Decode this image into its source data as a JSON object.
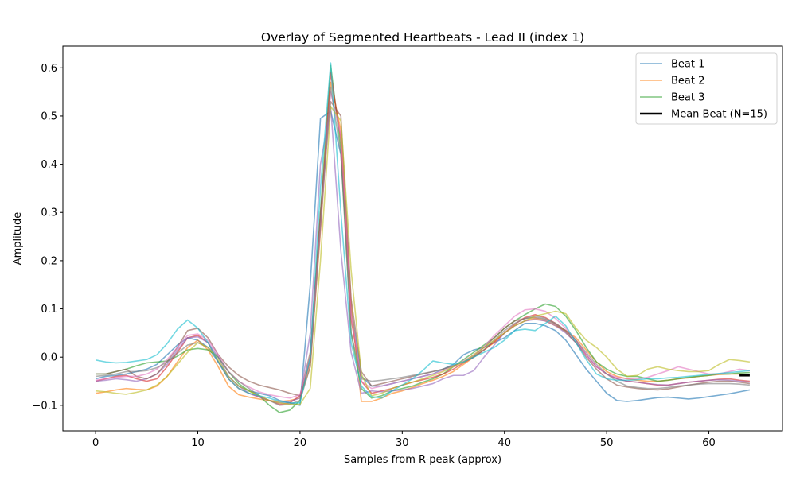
{
  "chart_data": {
    "type": "line",
    "title": "Overlay of Segmented Heartbeats - Lead II (index 1)",
    "xlabel": "Samples from R-peak (approx)",
    "ylabel": "Amplitude",
    "xlim": [
      -3.2,
      67.2
    ],
    "ylim": [
      -0.153,
      0.645
    ],
    "xticks": [
      0,
      10,
      20,
      30,
      40,
      50,
      60
    ],
    "yticks": [
      -0.1,
      0.0,
      0.1,
      0.2,
      0.3,
      0.4,
      0.5,
      0.6
    ],
    "ytick_labels": [
      "−0.1",
      "0.0",
      "0.1",
      "0.2",
      "0.3",
      "0.4",
      "0.5",
      "0.6"
    ],
    "grid": false,
    "legend_position": "upper right",
    "legend": [
      "Beat 1",
      "Beat 2",
      "Beat 3",
      "Mean Beat (N=15)"
    ],
    "series": [
      {
        "name": "Beat 1",
        "color": "#1f77b4",
        "values": [
          -0.045,
          -0.04,
          -0.038,
          -0.035,
          -0.03,
          -0.025,
          -0.015,
          0.005,
          0.025,
          0.04,
          0.035,
          0.02,
          -0.01,
          -0.04,
          -0.06,
          -0.07,
          -0.075,
          -0.08,
          -0.09,
          -0.095,
          -0.1,
          0.15,
          0.495,
          0.51,
          0.42,
          0.1,
          -0.04,
          -0.06,
          -0.06,
          -0.055,
          -0.05,
          -0.045,
          -0.04,
          -0.035,
          -0.025,
          -0.015,
          0.005,
          0.015,
          0.02,
          0.03,
          0.04,
          0.055,
          0.07,
          0.07,
          0.065,
          0.055,
          0.035,
          0.005,
          -0.025,
          -0.05,
          -0.075,
          -0.09,
          -0.092,
          -0.09,
          -0.087,
          -0.084,
          -0.083,
          -0.085,
          -0.087,
          -0.085,
          -0.082,
          -0.079,
          -0.076,
          -0.072,
          -0.068
        ]
      },
      {
        "name": "Beat 2",
        "color": "#ff7f0e",
        "values": [
          -0.075,
          -0.072,
          -0.068,
          -0.065,
          -0.067,
          -0.068,
          -0.06,
          -0.04,
          -0.01,
          0.02,
          0.035,
          0.015,
          -0.02,
          -0.06,
          -0.078,
          -0.083,
          -0.087,
          -0.09,
          -0.092,
          -0.09,
          -0.085,
          -0.02,
          0.26,
          0.57,
          0.47,
          0.11,
          -0.092,
          -0.092,
          -0.085,
          -0.075,
          -0.07,
          -0.063,
          -0.055,
          -0.048,
          -0.04,
          -0.03,
          -0.015,
          0.0,
          0.015,
          0.03,
          0.05,
          0.065,
          0.075,
          0.08,
          0.075,
          0.065,
          0.055,
          0.04,
          0.015,
          -0.01,
          -0.03,
          -0.04,
          -0.045,
          -0.048,
          -0.05,
          -0.05,
          -0.048,
          -0.045,
          -0.043,
          -0.04,
          -0.038,
          -0.036,
          -0.035,
          -0.035,
          -0.036
        ]
      },
      {
        "name": "Beat 3",
        "color": "#2ca02c",
        "values": [
          -0.035,
          -0.035,
          -0.03,
          -0.025,
          -0.018,
          -0.012,
          -0.01,
          -0.008,
          0.002,
          0.015,
          0.018,
          0.015,
          0.0,
          -0.03,
          -0.055,
          -0.07,
          -0.08,
          -0.1,
          -0.115,
          -0.11,
          -0.09,
          0.0,
          0.3,
          0.605,
          0.43,
          0.05,
          -0.065,
          -0.085,
          -0.08,
          -0.07,
          -0.065,
          -0.06,
          -0.052,
          -0.045,
          -0.035,
          -0.02,
          -0.005,
          0.01,
          0.025,
          0.04,
          0.06,
          0.075,
          0.088,
          0.1,
          0.11,
          0.105,
          0.085,
          0.055,
          0.02,
          -0.01,
          -0.025,
          -0.035,
          -0.04,
          -0.04,
          -0.045,
          -0.05,
          -0.048,
          -0.045,
          -0.042,
          -0.04,
          -0.038,
          -0.035,
          -0.035,
          -0.033,
          -0.032
        ]
      },
      {
        "name": "",
        "color": "#d62728",
        "values": [
          -0.05,
          -0.045,
          -0.04,
          -0.038,
          -0.045,
          -0.05,
          -0.045,
          -0.02,
          0.01,
          0.04,
          0.045,
          0.03,
          -0.01,
          -0.045,
          -0.065,
          -0.075,
          -0.082,
          -0.09,
          -0.098,
          -0.095,
          -0.08,
          -0.01,
          0.28,
          0.59,
          0.45,
          0.08,
          -0.05,
          -0.075,
          -0.07,
          -0.065,
          -0.058,
          -0.052,
          -0.047,
          -0.042,
          -0.035,
          -0.025,
          -0.012,
          0.0,
          0.015,
          0.032,
          0.05,
          0.068,
          0.082,
          0.088,
          0.082,
          0.07,
          0.055,
          0.035,
          0.005,
          -0.02,
          -0.035,
          -0.045,
          -0.05,
          -0.052,
          -0.055,
          -0.058,
          -0.058,
          -0.055,
          -0.052,
          -0.05,
          -0.048,
          -0.046,
          -0.045,
          -0.048,
          -0.05
        ]
      },
      {
        "name": "",
        "color": "#9467bd",
        "values": [
          -0.05,
          -0.048,
          -0.045,
          -0.047,
          -0.05,
          -0.045,
          -0.035,
          -0.015,
          0.015,
          0.04,
          0.042,
          0.03,
          0.0,
          -0.04,
          -0.06,
          -0.075,
          -0.083,
          -0.09,
          -0.095,
          -0.092,
          -0.085,
          0.05,
          0.4,
          0.52,
          0.22,
          0.01,
          -0.075,
          -0.07,
          -0.072,
          -0.07,
          -0.068,
          -0.065,
          -0.06,
          -0.055,
          -0.045,
          -0.038,
          -0.038,
          -0.028,
          0.0,
          0.025,
          0.05,
          0.065,
          0.075,
          0.078,
          0.075,
          0.065,
          0.05,
          0.03,
          0.005,
          -0.02,
          -0.035,
          -0.045,
          -0.05,
          -0.052,
          -0.055,
          -0.057,
          -0.058,
          -0.055,
          -0.052,
          -0.05,
          -0.048,
          -0.047,
          -0.048,
          -0.05,
          -0.052
        ]
      },
      {
        "name": "",
        "color": "#8c564b",
        "values": [
          -0.035,
          -0.035,
          -0.03,
          -0.025,
          -0.04,
          -0.045,
          -0.035,
          -0.01,
          0.02,
          0.055,
          0.06,
          0.04,
          0.005,
          -0.02,
          -0.038,
          -0.05,
          -0.058,
          -0.063,
          -0.068,
          -0.075,
          -0.08,
          0.01,
          0.3,
          0.53,
          0.5,
          0.12,
          -0.03,
          -0.06,
          -0.055,
          -0.05,
          -0.045,
          -0.04,
          -0.035,
          -0.03,
          -0.025,
          -0.018,
          -0.01,
          0.002,
          0.02,
          0.04,
          0.06,
          0.075,
          0.08,
          0.082,
          0.078,
          0.068,
          0.052,
          0.03,
          0.0,
          -0.025,
          -0.045,
          -0.058,
          -0.062,
          -0.065,
          -0.067,
          -0.068,
          -0.066,
          -0.062,
          -0.058,
          -0.055,
          -0.052,
          -0.05,
          -0.05,
          -0.052,
          -0.055
        ]
      },
      {
        "name": "",
        "color": "#e377c2",
        "values": [
          -0.048,
          -0.045,
          -0.042,
          -0.04,
          -0.04,
          -0.035,
          -0.025,
          -0.005,
          0.02,
          0.045,
          0.048,
          0.035,
          0.005,
          -0.03,
          -0.05,
          -0.062,
          -0.072,
          -0.078,
          -0.082,
          -0.085,
          -0.078,
          0.0,
          0.27,
          0.55,
          0.46,
          0.09,
          -0.05,
          -0.065,
          -0.06,
          -0.055,
          -0.05,
          -0.045,
          -0.04,
          -0.035,
          -0.028,
          -0.02,
          -0.008,
          0.005,
          0.022,
          0.045,
          0.065,
          0.085,
          0.098,
          0.1,
          0.095,
          0.08,
          0.06,
          0.035,
          0.005,
          -0.02,
          -0.035,
          -0.042,
          -0.045,
          -0.045,
          -0.042,
          -0.035,
          -0.028,
          -0.02,
          -0.025,
          -0.03,
          -0.035,
          -0.035,
          -0.03,
          -0.025,
          -0.028
        ]
      },
      {
        "name": "",
        "color": "#7f7f7f",
        "values": [
          -0.04,
          -0.038,
          -0.035,
          -0.03,
          -0.03,
          -0.028,
          -0.022,
          -0.01,
          0.008,
          0.025,
          0.03,
          0.02,
          0.0,
          -0.03,
          -0.05,
          -0.065,
          -0.08,
          -0.09,
          -0.1,
          -0.098,
          -0.09,
          -0.02,
          0.27,
          0.56,
          0.42,
          0.05,
          -0.045,
          -0.05,
          -0.048,
          -0.045,
          -0.042,
          -0.038,
          -0.034,
          -0.03,
          -0.025,
          -0.018,
          -0.01,
          0.0,
          0.015,
          0.035,
          0.055,
          0.07,
          0.08,
          0.085,
          0.08,
          0.07,
          0.055,
          0.035,
          0.01,
          -0.015,
          -0.035,
          -0.05,
          -0.06,
          -0.063,
          -0.065,
          -0.065,
          -0.063,
          -0.06,
          -0.058,
          -0.056,
          -0.055,
          -0.055,
          -0.055,
          -0.056,
          -0.058
        ]
      },
      {
        "name": "",
        "color": "#bcbd22",
        "values": [
          -0.07,
          -0.072,
          -0.075,
          -0.077,
          -0.073,
          -0.068,
          -0.058,
          -0.04,
          -0.015,
          0.01,
          0.03,
          0.02,
          -0.005,
          -0.04,
          -0.06,
          -0.07,
          -0.08,
          -0.09,
          -0.095,
          -0.098,
          -0.098,
          -0.065,
          0.2,
          0.52,
          0.49,
          0.18,
          -0.035,
          -0.08,
          -0.075,
          -0.065,
          -0.058,
          -0.052,
          -0.045,
          -0.038,
          -0.03,
          -0.02,
          -0.01,
          0.005,
          0.02,
          0.035,
          0.05,
          0.065,
          0.075,
          0.085,
          0.09,
          0.095,
          0.09,
          0.06,
          0.035,
          0.02,
          0.0,
          -0.025,
          -0.04,
          -0.038,
          -0.025,
          -0.02,
          -0.025,
          -0.028,
          -0.03,
          -0.03,
          -0.028,
          -0.015,
          -0.005,
          -0.007,
          -0.01
        ]
      },
      {
        "name": "",
        "color": "#17becf",
        "values": [
          -0.006,
          -0.01,
          -0.012,
          -0.011,
          -0.008,
          -0.005,
          0.005,
          0.028,
          0.058,
          0.077,
          0.06,
          0.03,
          -0.01,
          -0.045,
          -0.065,
          -0.075,
          -0.08,
          -0.085,
          -0.092,
          -0.095,
          -0.095,
          0.0,
          0.35,
          0.61,
          0.3,
          0.03,
          -0.06,
          -0.082,
          -0.085,
          -0.07,
          -0.058,
          -0.045,
          -0.028,
          -0.008,
          -0.012,
          -0.015,
          -0.01,
          0.0,
          0.01,
          0.02,
          0.035,
          0.055,
          0.058,
          0.055,
          0.07,
          0.085,
          0.065,
          0.03,
          -0.005,
          -0.035,
          -0.045,
          -0.048,
          -0.048,
          -0.047,
          -0.045,
          -0.045,
          -0.043,
          -0.042,
          -0.04,
          -0.038,
          -0.036,
          -0.034,
          -0.032,
          -0.03,
          -0.028
        ]
      }
    ],
    "mean_series": {
      "name": "Mean Beat (N=15)",
      "color": "#000000",
      "x": [
        63,
        64
      ],
      "values": [
        -0.038,
        -0.038
      ]
    }
  }
}
